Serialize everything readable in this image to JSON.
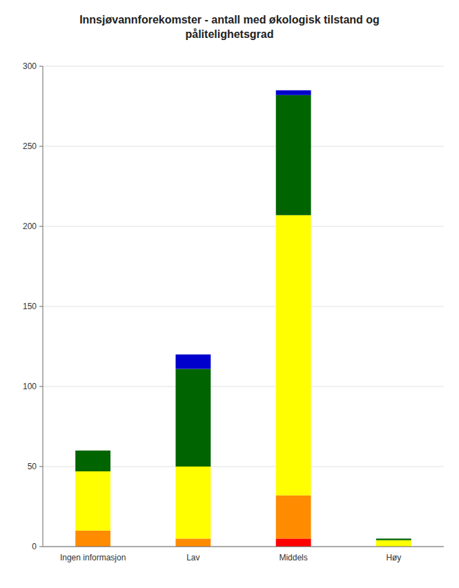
{
  "chart_data": {
    "type": "bar",
    "stacked": true,
    "grid": true,
    "title": "Innsjøvannforekomster - antall med økologisk tilstand og\npålitelighetsgrad",
    "categories": [
      "Ingen informasjon",
      "Lav",
      "Middels",
      "Høy"
    ],
    "series": [
      {
        "color": "#ff0000",
        "values": [
          0,
          0,
          5,
          0
        ]
      },
      {
        "color": "#ff8c00",
        "values": [
          10,
          5,
          27,
          0
        ]
      },
      {
        "color": "#ffff00",
        "values": [
          37,
          45,
          175,
          4
        ]
      },
      {
        "color": "#006400",
        "values": [
          13,
          61,
          75,
          1
        ]
      },
      {
        "color": "#0000cd",
        "values": [
          0,
          9,
          3,
          0
        ]
      }
    ],
    "ylim": [
      0,
      300
    ],
    "yticks": [
      0,
      50,
      100,
      150,
      200,
      250,
      300
    ]
  }
}
